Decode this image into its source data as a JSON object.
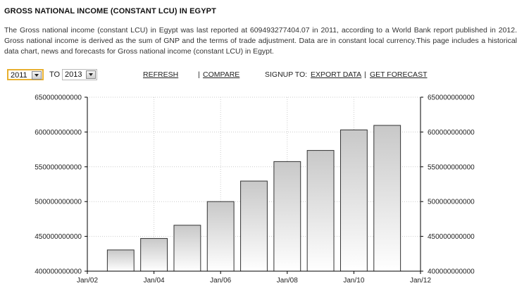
{
  "header": {
    "title": "GROSS NATIONAL INCOME (CONSTANT LCU) IN EGYPT",
    "description": "The Gross national income (constant LCU) in Egypt was last reported at 609493277404.07 in 2011, according to a World Bank report published in 2012. Gross national income is derived as the sum of GNP and the terms of trade adjustment. Data are in constant local currency.This page includes a historical data chart, news and forecasts for Gross national income (constant LCU) in Egypt."
  },
  "controls": {
    "from_year": "2011",
    "to_label": "TO",
    "to_year": "2013",
    "refresh": "REFRESH",
    "sep1": "|",
    "compare": "COMPARE",
    "signup_label": "SIGNUP TO:",
    "export_data": "EXPORT DATA",
    "sep2": "|",
    "get_forecast": "GET FORECAST"
  },
  "chart_data": {
    "type": "bar",
    "title": "",
    "xlabel": "",
    "ylabel": "",
    "categories": [
      "2003",
      "2004",
      "2005",
      "2006",
      "2007",
      "2008",
      "2009",
      "2010",
      "2011"
    ],
    "values": [
      430500000000,
      447000000000,
      466000000000,
      500000000000,
      529500000000,
      557500000000,
      573500000000,
      603000000000,
      609493277404.07
    ],
    "ylim": [
      400000000000,
      650000000000
    ],
    "yticks": [
      "400000000000",
      "450000000000",
      "500000000000",
      "550000000000",
      "600000000000",
      "650000000000"
    ],
    "xticks": [
      "Jan/02",
      "Jan/04",
      "Jan/06",
      "Jan/08",
      "Jan/10",
      "Jan/12"
    ],
    "grid": true,
    "colors": {
      "bar_top": "#c8c8c8",
      "bar_bottom": "#ffffff",
      "bar_border": "#333333",
      "grid": "#cccccc"
    }
  }
}
